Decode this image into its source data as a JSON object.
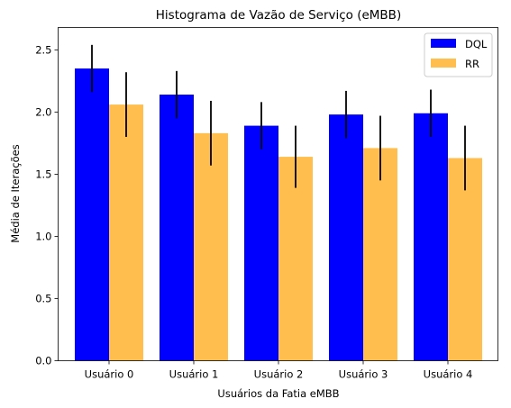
{
  "chart_data": {
    "type": "bar",
    "title": "Histograma de Vazão de Serviço (eMBB)",
    "xlabel": "Usuários da Fatia eMBB",
    "ylabel": "Média de Iterações",
    "categories": [
      "Usuário 0",
      "Usuário 1",
      "Usuário 2",
      "Usuário 3",
      "Usuário 4"
    ],
    "ylim": [
      0,
      2.68
    ],
    "yticks": [
      "0.0",
      "0.5",
      "1.0",
      "1.5",
      "2.0",
      "2.5"
    ],
    "grid": false,
    "legend_position": "top-right",
    "series": [
      {
        "name": "DQL",
        "color": "#0000ff",
        "values": [
          2.35,
          2.14,
          1.89,
          1.98,
          1.99
        ],
        "errors": [
          0.19,
          0.19,
          0.19,
          0.19,
          0.19
        ]
      },
      {
        "name": "RR",
        "color": "#ffbe4d",
        "values": [
          2.06,
          1.83,
          1.64,
          1.71,
          1.63
        ],
        "errors": [
          0.26,
          0.26,
          0.25,
          0.26,
          0.26
        ]
      }
    ]
  }
}
